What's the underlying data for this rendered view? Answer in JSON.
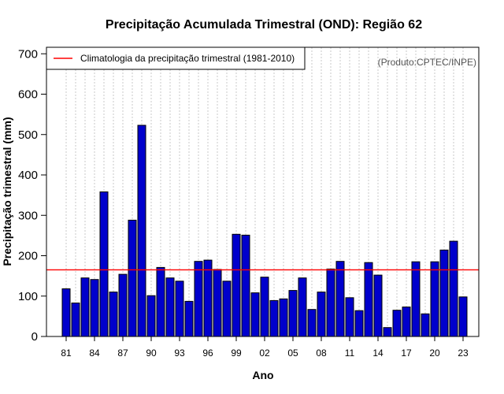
{
  "chart_data": {
    "type": "bar",
    "title": "Precipitação Acumulada Trimestral (OND): Região 62",
    "xlabel": "Ano",
    "ylabel": "Precipitação trimestral (mm)",
    "ylim": [
      0,
      720
    ],
    "yticks": [
      0,
      100,
      200,
      300,
      400,
      500,
      600,
      700
    ],
    "grid": "vertical dotted",
    "categories": [
      "1981",
      "1982",
      "1983",
      "1984",
      "1985",
      "1986",
      "1987",
      "1988",
      "1989",
      "1990",
      "1991",
      "1992",
      "1993",
      "1994",
      "1995",
      "1996",
      "1997",
      "1998",
      "1999",
      "2000",
      "2001",
      "2002",
      "2003",
      "2004",
      "2005",
      "2006",
      "2007",
      "2008",
      "2009",
      "2010",
      "2011",
      "2012",
      "2013",
      "2014",
      "2015",
      "2016",
      "2017",
      "2018",
      "2019",
      "2020",
      "2021",
      "2022",
      "2023"
    ],
    "x_tick_labels": [
      "81",
      "84",
      "87",
      "90",
      "93",
      "96",
      "99",
      "02",
      "05",
      "08",
      "11",
      "14",
      "17",
      "20",
      "23"
    ],
    "x_tick_every": 3,
    "values": [
      118,
      83,
      145,
      141,
      358,
      110,
      154,
      288,
      523,
      101,
      171,
      145,
      137,
      87,
      186,
      189,
      166,
      137,
      253,
      251,
      108,
      147,
      89,
      93,
      114,
      145,
      67,
      110,
      167,
      186,
      96,
      64,
      183,
      152,
      22,
      65,
      73,
      185,
      56,
      185,
      214,
      236,
      98
    ],
    "bar_color": "#0000cc",
    "reference_line": {
      "label": "Climatologia da precipitação trimestral (1981-2010)",
      "value": 165,
      "color": "#ff0000"
    },
    "legend_position": "top-left",
    "annotation": "(Produto:CPTEC/INPE)"
  }
}
